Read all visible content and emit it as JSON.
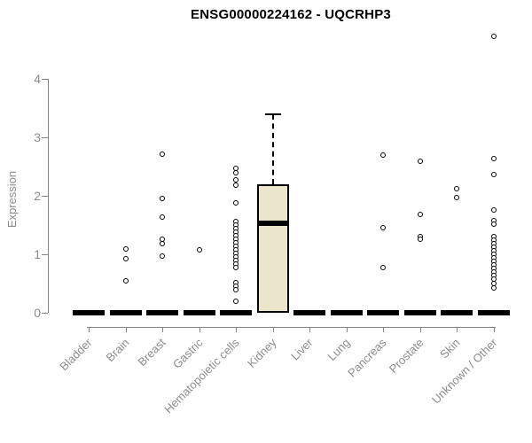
{
  "title": "ENSG00000224162 - UQCRHP3",
  "colors": {
    "box_fill": "#ece7cc",
    "box_border": "#000000",
    "axis_line": "#858585",
    "axis_text": "#8c8c8c",
    "title_text": "#000000",
    "point_stroke": "#000000"
  },
  "chart_data": {
    "type": "boxplot",
    "title": "ENSG00000224162 - UQCRHP3",
    "xlabel": "",
    "ylabel": "Expression",
    "ylim": [
      0,
      4.8
    ],
    "yticks": [
      0,
      1,
      2,
      3,
      4
    ],
    "grid": false,
    "categories": [
      "Bladder",
      "Brain",
      "Breast",
      "Gastric",
      "Hematopoietic cells",
      "Kidney",
      "Liver",
      "Lung",
      "Pancreas",
      "Prostate",
      "Skin",
      "Unknown / Other"
    ],
    "boxes": [
      {
        "category": "Bladder",
        "whisker_low": 0,
        "q1": 0,
        "median": 0,
        "q3": 0,
        "whisker_high": 0,
        "outliers": []
      },
      {
        "category": "Brain",
        "whisker_low": 0,
        "q1": 0,
        "median": 0,
        "q3": 0,
        "whisker_high": 0,
        "outliers": [
          1.09,
          0.92,
          0.54
        ]
      },
      {
        "category": "Breast",
        "whisker_low": 0,
        "q1": 0,
        "median": 0,
        "q3": 0,
        "whisker_high": 0,
        "outliers": [
          2.71,
          1.95,
          1.64,
          1.26,
          1.18,
          0.97
        ]
      },
      {
        "category": "Gastric",
        "whisker_low": 0,
        "q1": 0,
        "median": 0,
        "q3": 0,
        "whisker_high": 0,
        "outliers": [
          1.07
        ]
      },
      {
        "category": "Hematopoietic cells",
        "whisker_low": 0,
        "q1": 0,
        "median": 0,
        "q3": 0,
        "whisker_high": 0,
        "outliers": [
          2.47,
          2.4,
          2.27,
          2.18,
          1.88,
          1.56,
          1.5,
          1.44,
          1.38,
          1.32,
          1.26,
          1.2,
          1.14,
          1.08,
          1.02,
          0.96,
          0.9,
          0.84,
          0.78,
          0.52,
          0.46,
          0.4,
          0.2
        ]
      },
      {
        "category": "Kidney",
        "whisker_low": 0,
        "q1": 0,
        "median": 1.53,
        "q3": 2.2,
        "whisker_high": 3.4,
        "outliers": []
      },
      {
        "category": "Liver",
        "whisker_low": 0,
        "q1": 0,
        "median": 0,
        "q3": 0,
        "whisker_high": 0,
        "outliers": []
      },
      {
        "category": "Lung",
        "whisker_low": 0,
        "q1": 0,
        "median": 0,
        "q3": 0,
        "whisker_high": 0,
        "outliers": []
      },
      {
        "category": "Pancreas",
        "whisker_low": 0,
        "q1": 0,
        "median": 0,
        "q3": 0,
        "whisker_high": 0,
        "outliers": [
          2.7,
          1.45,
          0.78
        ]
      },
      {
        "category": "Prostate",
        "whisker_low": 0,
        "q1": 0,
        "median": 0,
        "q3": 0,
        "whisker_high": 0,
        "outliers": [
          2.59,
          1.68,
          1.3,
          1.26
        ]
      },
      {
        "category": "Skin",
        "whisker_low": 0,
        "q1": 0,
        "median": 0,
        "q3": 0,
        "whisker_high": 0,
        "outliers": [
          2.12,
          1.97
        ]
      },
      {
        "category": "Unknown / Other",
        "whisker_low": 0,
        "q1": 0,
        "median": 0,
        "q3": 0,
        "whisker_high": 0,
        "outliers": [
          4.72,
          2.64,
          2.36,
          1.76,
          1.57,
          1.51,
          1.3,
          1.24,
          1.18,
          1.12,
          1.06,
          1.0,
          0.94,
          0.88,
          0.82,
          0.76,
          0.7,
          0.64,
          0.58,
          0.5,
          0.42
        ]
      }
    ]
  }
}
